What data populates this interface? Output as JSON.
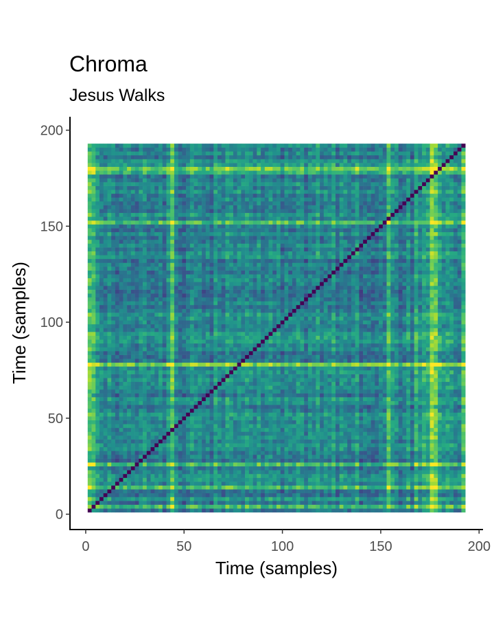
{
  "chart_data": {
    "type": "heatmap",
    "title": "Chroma",
    "subtitle": "Jesus Walks",
    "xlabel": "Time (samples)",
    "ylabel": "Time (samples)",
    "xlim": [
      -8,
      202
    ],
    "ylim": [
      -8,
      207
    ],
    "x_ticks": [
      "0",
      "50",
      "100",
      "150",
      "200"
    ],
    "y_ticks": [
      "0",
      "50",
      "100",
      "150",
      "200"
    ],
    "grid": false,
    "legend": "none",
    "color_scale": "viridis",
    "cell_range": [
      2,
      193
    ],
    "cell_step": 2,
    "diagonal_value": 0,
    "colors": {
      "low": "#440154",
      "mid_low": "#3b528b",
      "mid": "#21908d",
      "mid_high": "#5dc963",
      "high": "#fde725"
    },
    "bright_columns": [
      2,
      4,
      44,
      154,
      176,
      178,
      192
    ],
    "bright_rows": [
      4,
      14,
      26,
      78,
      152,
      178,
      180
    ]
  }
}
